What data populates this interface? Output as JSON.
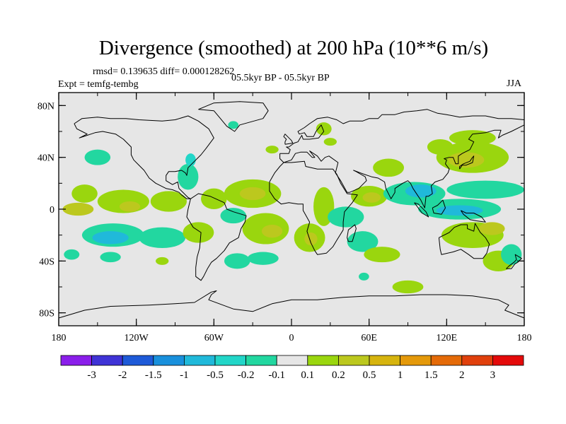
{
  "title": "Divergence (smoothed) at 200 hPa (10**6 m/s)",
  "stats": "rmsd= 0.139635 diff= 0.000128262",
  "experiment": "Expt = temfg-tembg",
  "period": "05.5kyr BP - 05.5kyr BP",
  "season": "JJA",
  "map": {
    "lat_labels": [
      "80N",
      "40N",
      "0",
      "40S",
      "80S"
    ],
    "lat_values": [
      80,
      40,
      0,
      -40,
      -80
    ],
    "lon_labels": [
      "180",
      "120W",
      "60W",
      "0",
      "60E",
      "120E",
      "180"
    ],
    "lon_values": [
      -180,
      -120,
      -60,
      0,
      60,
      120,
      180
    ],
    "background_color": "#e6e6e6"
  },
  "colorbar": {
    "labels": [
      "-3",
      "-2",
      "-1.5",
      "-1",
      "-0.5",
      "-0.2",
      "-0.1",
      "0.1",
      "0.2",
      "0.5",
      "1",
      "1.5",
      "2",
      "3"
    ],
    "colors": [
      "#8a1eea",
      "#3f33d6",
      "#1e5ad8",
      "#1990dc",
      "#20b9da",
      "#22d6c8",
      "#22d7a0",
      "#e6e6e6",
      "#9ad60e",
      "#bcc81e",
      "#d6b40e",
      "#e4990a",
      "#e46a08",
      "#e0400c",
      "#e40a0a"
    ]
  },
  "fields": [
    {
      "lon": -160,
      "lat": 12,
      "rx": 10,
      "ry": 7,
      "level": "0.2"
    },
    {
      "lon": -165,
      "lat": 0,
      "rx": 12,
      "ry": 5,
      "level": "0.5"
    },
    {
      "lon": -130,
      "lat": 6,
      "rx": 20,
      "ry": 9,
      "level": "0.2"
    },
    {
      "lon": -125,
      "lat": 2,
      "rx": 8,
      "ry": 4,
      "level": "0.5"
    },
    {
      "lon": -95,
      "lat": 6,
      "rx": 14,
      "ry": 8,
      "level": "0.2"
    },
    {
      "lon": -150,
      "lat": 40,
      "rx": 10,
      "ry": 6,
      "level": "-0.1"
    },
    {
      "lon": -138,
      "lat": -20,
      "rx": 24,
      "ry": 9,
      "level": "-0.1"
    },
    {
      "lon": -140,
      "lat": -22,
      "rx": 14,
      "ry": 5,
      "level": "-0.5"
    },
    {
      "lon": -100,
      "lat": -22,
      "rx": 18,
      "ry": 8,
      "level": "-0.1"
    },
    {
      "lon": -170,
      "lat": -35,
      "rx": 6,
      "ry": 4,
      "level": "-0.1"
    },
    {
      "lon": -140,
      "lat": -37,
      "rx": 8,
      "ry": 4,
      "level": "-0.1"
    },
    {
      "lon": -100,
      "lat": -40,
      "rx": 5,
      "ry": 3,
      "level": "0.2"
    },
    {
      "lon": -80,
      "lat": 25,
      "rx": 8,
      "ry": 10,
      "level": "-0.1"
    },
    {
      "lon": -78,
      "lat": 38,
      "rx": 4,
      "ry": 5,
      "level": "-0.2"
    },
    {
      "lon": -72,
      "lat": -18,
      "rx": 12,
      "ry": 8,
      "level": "0.2"
    },
    {
      "lon": -60,
      "lat": 8,
      "rx": 10,
      "ry": 8,
      "level": "0.2"
    },
    {
      "lon": -30,
      "lat": 12,
      "rx": 22,
      "ry": 11,
      "level": "0.2"
    },
    {
      "lon": -30,
      "lat": 12,
      "rx": 10,
      "ry": 5,
      "level": "0.5"
    },
    {
      "lon": -20,
      "lat": -15,
      "rx": 18,
      "ry": 12,
      "level": "0.2"
    },
    {
      "lon": -15,
      "lat": -17,
      "rx": 8,
      "ry": 5,
      "level": "0.5"
    },
    {
      "lon": -22,
      "lat": -38,
      "rx": 12,
      "ry": 5,
      "level": "-0.1"
    },
    {
      "lon": -42,
      "lat": -40,
      "rx": 10,
      "ry": 6,
      "level": "-0.1"
    },
    {
      "lon": -45,
      "lat": -5,
      "rx": 10,
      "ry": 6,
      "level": "-0.1"
    },
    {
      "lon": -45,
      "lat": 65,
      "rx": 4,
      "ry": 3,
      "level": "-0.1"
    },
    {
      "lon": -15,
      "lat": 46,
      "rx": 5,
      "ry": 3,
      "level": "0.2"
    },
    {
      "lon": 25,
      "lat": 62,
      "rx": 6,
      "ry": 5,
      "level": "0.2"
    },
    {
      "lon": 30,
      "lat": 52,
      "rx": 5,
      "ry": 3,
      "level": "0.2"
    },
    {
      "lon": 25,
      "lat": 2,
      "rx": 8,
      "ry": 15,
      "level": "0.2"
    },
    {
      "lon": 14,
      "lat": -22,
      "rx": 12,
      "ry": 11,
      "level": "0.2"
    },
    {
      "lon": 15,
      "lat": -23,
      "rx": 5,
      "ry": 5,
      "level": "0.5"
    },
    {
      "lon": 42,
      "lat": -6,
      "rx": 14,
      "ry": 8,
      "level": "-0.1"
    },
    {
      "lon": 55,
      "lat": -25,
      "rx": 12,
      "ry": 8,
      "level": "-0.1"
    },
    {
      "lon": 70,
      "lat": -35,
      "rx": 14,
      "ry": 6,
      "level": "0.2"
    },
    {
      "lon": 60,
      "lat": 10,
      "rx": 14,
      "ry": 8,
      "level": "0.2"
    },
    {
      "lon": 62,
      "lat": 9,
      "rx": 7,
      "ry": 4,
      "level": "0.5"
    },
    {
      "lon": 75,
      "lat": 32,
      "rx": 12,
      "ry": 7,
      "level": "0.2"
    },
    {
      "lon": 95,
      "lat": 12,
      "rx": 24,
      "ry": 9,
      "level": "-0.1"
    },
    {
      "lon": 100,
      "lat": 14,
      "rx": 12,
      "ry": 5,
      "level": "-0.5"
    },
    {
      "lon": 150,
      "lat": 15,
      "rx": 30,
      "ry": 7,
      "level": "-0.1"
    },
    {
      "lon": 130,
      "lat": 0,
      "rx": 32,
      "ry": 8,
      "level": "-0.1"
    },
    {
      "lon": 130,
      "lat": -1,
      "rx": 18,
      "ry": 4,
      "level": "-0.5"
    },
    {
      "lon": 140,
      "lat": 40,
      "rx": 28,
      "ry": 12,
      "level": "0.2"
    },
    {
      "lon": 135,
      "lat": 38,
      "rx": 14,
      "ry": 6,
      "level": "0.5"
    },
    {
      "lon": 140,
      "lat": 55,
      "rx": 18,
      "ry": 6,
      "level": "0.2"
    },
    {
      "lon": 115,
      "lat": 48,
      "rx": 10,
      "ry": 6,
      "level": "0.2"
    },
    {
      "lon": 140,
      "lat": -20,
      "rx": 24,
      "ry": 10,
      "level": "0.2"
    },
    {
      "lon": 155,
      "lat": -15,
      "rx": 10,
      "ry": 5,
      "level": "0.5"
    },
    {
      "lon": 160,
      "lat": -40,
      "rx": 12,
      "ry": 8,
      "level": "0.2"
    },
    {
      "lon": 170,
      "lat": -35,
      "rx": 8,
      "ry": 8,
      "level": "-0.1"
    },
    {
      "lon": 90,
      "lat": -60,
      "rx": 12,
      "ry": 5,
      "level": "0.2"
    },
    {
      "lon": 56,
      "lat": -52,
      "rx": 4,
      "ry": 3,
      "level": "-0.1"
    }
  ]
}
